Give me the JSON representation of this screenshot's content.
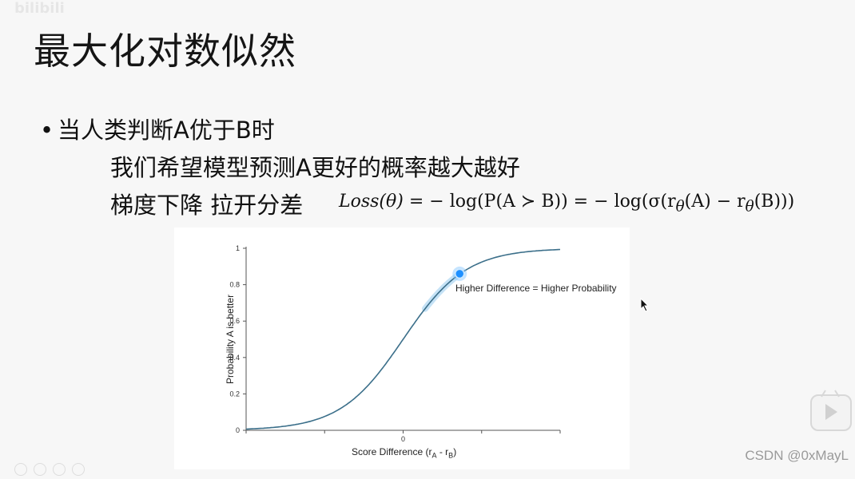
{
  "watermark": {
    "bilibili": "bilibili"
  },
  "slide": {
    "title": "最大化对数似然",
    "bullet": "当人类判断A优于B时",
    "line1": "我们希望模型预测A更好的概率越大越好",
    "line2_label": "梯度下降 拉开分差"
  },
  "formula": {
    "lhs": "Loss(θ)",
    "eq1": " = − log(P(A ≻ B)) = − log(σ(r",
    "theta1": "θ",
    "mid": "(A) − r",
    "theta2": "θ",
    "end": "(B)))"
  },
  "chart_data": {
    "type": "line",
    "series": [
      {
        "x": [
          -5,
          -4,
          -3,
          -2,
          -1.5,
          -1,
          -0.5,
          0,
          0.5,
          1,
          1.5,
          2,
          3,
          4,
          5
        ],
        "y": [
          0.007,
          0.018,
          0.047,
          0.119,
          0.182,
          0.269,
          0.378,
          0.5,
          0.622,
          0.731,
          0.818,
          0.881,
          0.953,
          0.982,
          0.993
        ]
      }
    ],
    "xlabel": "Score Difference (rA - rB)",
    "xlabel_sub": {
      "main": "Score Difference (r",
      "a": "A",
      "dash": " - r",
      "b": "B",
      "close": ")"
    },
    "ylabel": "Probability A is better",
    "yticks": [
      "0",
      "0.2",
      "0.4",
      "0.6",
      "0.8",
      "1"
    ],
    "yticks_values": [
      0,
      0.2,
      0.4,
      0.6,
      0.8,
      1
    ],
    "xticks": [
      "0"
    ],
    "xlim": [
      -5,
      5
    ],
    "ylim": [
      0,
      1
    ],
    "highlight_point": {
      "x": 1.8,
      "y": 0.86
    },
    "annotation": "Higher Difference = Higher Probability",
    "line_color": "#3b6f8a",
    "highlight_color": "#1e90ff"
  },
  "footer": {
    "csdn": "CSDN @0xMayL"
  }
}
